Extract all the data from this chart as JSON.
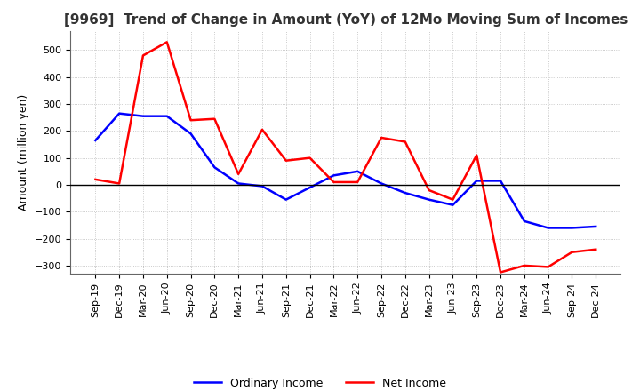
{
  "title": "[9969]  Trend of Change in Amount (YoY) of 12Mo Moving Sum of Incomes",
  "ylabel": "Amount (million yen)",
  "x_labels": [
    "Sep-19",
    "Dec-19",
    "Mar-20",
    "Jun-20",
    "Sep-20",
    "Dec-20",
    "Mar-21",
    "Jun-21",
    "Sep-21",
    "Dec-21",
    "Mar-22",
    "Jun-22",
    "Sep-22",
    "Dec-22",
    "Mar-23",
    "Jun-23",
    "Sep-23",
    "Dec-23",
    "Mar-24",
    "Jun-24",
    "Sep-24",
    "Dec-24"
  ],
  "ordinary_income": [
    165,
    265,
    255,
    255,
    190,
    65,
    5,
    -5,
    -55,
    -10,
    35,
    50,
    5,
    -30,
    -55,
    -75,
    15,
    15,
    -135,
    -160,
    -160,
    -155
  ],
  "net_income": [
    20,
    5,
    480,
    530,
    240,
    245,
    40,
    205,
    90,
    100,
    10,
    10,
    175,
    160,
    -20,
    -55,
    110,
    -325,
    -300,
    -305,
    -250,
    -240
  ],
  "ordinary_color": "#0000ff",
  "net_color": "#ff0000",
  "ylim_min": -330,
  "ylim_max": 570,
  "yticks": [
    -300,
    -200,
    -100,
    0,
    100,
    200,
    300,
    400,
    500
  ],
  "background_color": "#ffffff",
  "grid_color": "#aaaaaa",
  "title_fontsize": 11,
  "axis_label_fontsize": 9,
  "tick_fontsize": 8,
  "legend_fontsize": 9
}
